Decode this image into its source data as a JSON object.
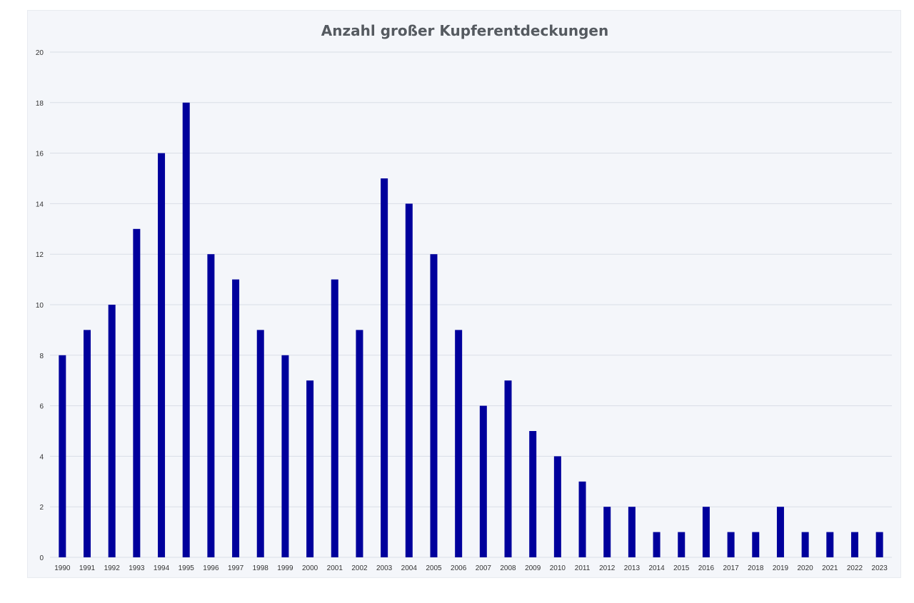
{
  "chart_data": {
    "type": "bar",
    "title": "Anzahl großer Kupferentdeckungen",
    "xlabel": "",
    "ylabel": "",
    "categories": [
      "1990",
      "1991",
      "1992",
      "1993",
      "1994",
      "1995",
      "1996",
      "1997",
      "1998",
      "1999",
      "2000",
      "2001",
      "2002",
      "2003",
      "2004",
      "2005",
      "2006",
      "2007",
      "2008",
      "2009",
      "2010",
      "2011",
      "2012",
      "2013",
      "2014",
      "2015",
      "2016",
      "2017",
      "2018",
      "2019",
      "2020",
      "2021",
      "2022",
      "2023"
    ],
    "values": [
      8,
      9,
      10,
      13,
      16,
      18,
      12,
      11,
      9,
      8,
      7,
      11,
      9,
      15,
      14,
      12,
      9,
      6,
      7,
      5,
      4,
      3,
      2,
      2,
      1,
      1,
      2,
      1,
      1,
      2,
      1,
      1,
      1,
      1
    ],
    "ylim": [
      0,
      20
    ],
    "yticks": [
      0,
      2,
      4,
      6,
      8,
      10,
      12,
      14,
      16,
      18,
      20
    ],
    "grid": true,
    "legend": "none",
    "bar_color": "#00009c",
    "grid_color": "#d9dde6"
  }
}
